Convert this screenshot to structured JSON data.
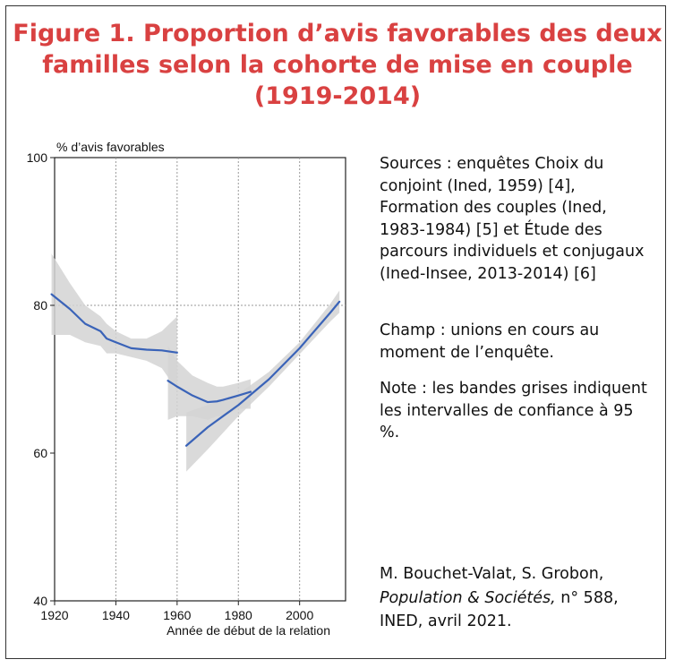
{
  "figure": {
    "title_lines": [
      "Figure 1. Proportion d’avis favorables des deux",
      "familles selon la cohorte de mise en couple",
      "(1919-2014)"
    ]
  },
  "notes": {
    "sources": "Sources : enquêtes Choix du conjoint (Ined, 1959) [4], Formation des couples (Ined, 1983-1984) [5] et Étude des parcours individuels et conjugaux (Ined-Insee, 2013-2014) [6]",
    "champ": "Champ : unions en cours au moment de l’enquête.",
    "note": "Note : les bandes grises indiquent les intervalles de confiance à 95 %."
  },
  "credit": {
    "authors": "M. Bouchet-Valat, S. Grobon,",
    "journal": "Population & Sociétés,",
    "issue": " n° 588,",
    "publisher": "INED, avril 2021."
  },
  "chart_data": {
    "type": "line",
    "ylabel": "% d’avis favorables",
    "xlabel": "Année de début de la relation",
    "xlim": [
      1920,
      2015
    ],
    "ylim": [
      40,
      100
    ],
    "x_ticks": [
      1920,
      1940,
      1960,
      1980,
      2000
    ],
    "y_ticks": [
      40,
      60,
      80,
      100
    ],
    "grid": "dotted vertical lines at 1940, 1960, 1980, 2000; dotted horizontal line at 80",
    "colors": {
      "line": "#3a63b8",
      "band": "#d4d4d4"
    },
    "series": [
      {
        "x": [
          1919,
          1925,
          1930,
          1935,
          1937,
          1940,
          1945,
          1950,
          1955,
          1960
        ],
        "y": [
          81.5,
          79.5,
          77.5,
          76.5,
          75.5,
          75.0,
          74.2,
          74.0,
          73.9,
          73.6
        ],
        "ci_upper": [
          87.0,
          83.0,
          80.0,
          78.5,
          77.5,
          76.5,
          75.5,
          75.5,
          76.5,
          78.5
        ],
        "ci_lower": [
          76.0,
          76.0,
          75.0,
          74.5,
          73.5,
          73.5,
          73.0,
          72.5,
          71.5,
          68.5
        ]
      },
      {
        "x": [
          1957,
          1960,
          1965,
          1970,
          1973,
          1975,
          1980,
          1984
        ],
        "y": [
          69.8,
          69.0,
          67.8,
          66.9,
          67.0,
          67.2,
          67.8,
          68.3
        ],
        "ci_upper": [
          74.5,
          72.5,
          70.5,
          69.5,
          69.0,
          69.0,
          69.5,
          70.0
        ],
        "ci_lower": [
          64.5,
          65.0,
          65.0,
          64.5,
          65.0,
          65.0,
          66.0,
          66.0
        ]
      },
      {
        "x": [
          1963,
          1970,
          1980,
          1990,
          2000,
          2010,
          2013
        ],
        "y": [
          61.0,
          63.5,
          66.5,
          70.0,
          74.2,
          79.0,
          80.5
        ],
        "ci_upper": [
          65.5,
          66.5,
          68.0,
          71.0,
          75.0,
          80.2,
          82.0
        ],
        "ci_lower": [
          57.5,
          60.5,
          65.0,
          69.0,
          73.4,
          77.8,
          79.0
        ]
      }
    ]
  }
}
